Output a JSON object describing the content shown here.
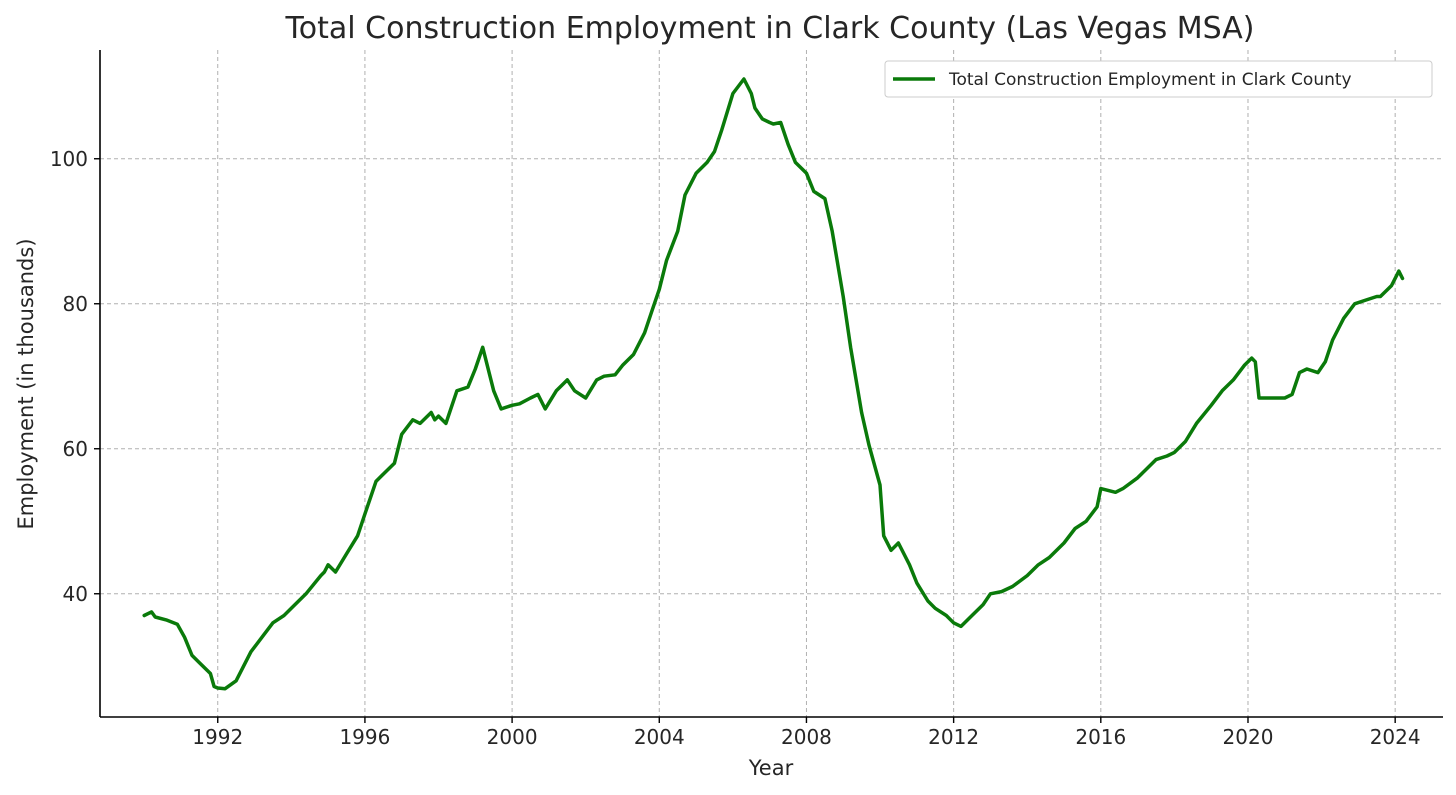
{
  "chart_data": {
    "type": "line",
    "title": "Total Construction Employment in Clark County (Las Vegas MSA)",
    "xlabel": "Year",
    "ylabel": "Employment (in thousands)",
    "xlim": [
      1988.8,
      2025.3
    ],
    "ylim": [
      23,
      115
    ],
    "xticks": [
      1992,
      1996,
      2000,
      2004,
      2008,
      2012,
      2016,
      2020,
      2024
    ],
    "yticks": [
      40,
      60,
      80,
      100
    ],
    "grid": true,
    "legend_position": "top-right",
    "series": [
      {
        "name": "Total Construction Employment in Clark County",
        "color": "#0a7a0a",
        "x": [
          1990.0,
          1990.2,
          1990.3,
          1990.6,
          1990.9,
          1991.1,
          1991.3,
          1991.5,
          1991.8,
          1991.9,
          1992.0,
          1992.2,
          1992.5,
          1992.7,
          1992.9,
          1993.2,
          1993.5,
          1993.8,
          1994.0,
          1994.4,
          1994.8,
          1994.9,
          1995.0,
          1995.2,
          1995.5,
          1995.8,
          1996.0,
          1996.3,
          1996.5,
          1996.8,
          1997.0,
          1997.3,
          1997.5,
          1997.8,
          1997.9,
          1998.0,
          1998.2,
          1998.5,
          1998.8,
          1999.0,
          1999.2,
          1999.4,
          1999.5,
          1999.7,
          2000.0,
          2000.2,
          2000.5,
          2000.7,
          2000.9,
          2001.2,
          2001.5,
          2001.7,
          2002.0,
          2002.3,
          2002.5,
          2002.8,
          2003.0,
          2003.3,
          2003.6,
          2003.8,
          2004.0,
          2004.2,
          2004.5,
          2004.7,
          2005.0,
          2005.3,
          2005.5,
          2005.7,
          2006.0,
          2006.3,
          2006.5,
          2006.6,
          2006.8,
          2007.0,
          2007.1,
          2007.3,
          2007.5,
          2007.7,
          2008.0,
          2008.2,
          2008.5,
          2008.7,
          2009.0,
          2009.2,
          2009.5,
          2009.7,
          2010.0,
          2010.1,
          2010.3,
          2010.5,
          2010.8,
          2011.0,
          2011.3,
          2011.5,
          2011.8,
          2012.0,
          2012.2,
          2012.5,
          2012.8,
          2013.0,
          2013.3,
          2013.6,
          2014.0,
          2014.3,
          2014.6,
          2015.0,
          2015.3,
          2015.6,
          2015.9,
          2016.0,
          2016.4,
          2016.6,
          2017.0,
          2017.2,
          2017.5,
          2017.8,
          2018.0,
          2018.3,
          2018.6,
          2019.0,
          2019.3,
          2019.6,
          2019.9,
          2020.1,
          2020.2,
          2020.3,
          2020.6,
          2021.0,
          2021.2,
          2021.4,
          2021.6,
          2021.9,
          2022.1,
          2022.3,
          2022.6,
          2022.9,
          2023.2,
          2023.5,
          2023.6,
          2023.9,
          2024.1,
          2024.2
        ],
        "y": [
          37.0,
          37.5,
          36.8,
          36.4,
          35.8,
          34.0,
          31.5,
          30.5,
          29.0,
          27.2,
          27.0,
          26.9,
          28.0,
          30.0,
          32.0,
          34.0,
          36.0,
          37.0,
          38.0,
          40.0,
          42.5,
          43.0,
          44.0,
          43.0,
          45.5,
          48.0,
          51.0,
          55.5,
          56.5,
          58.0,
          62.0,
          64.0,
          63.5,
          65.0,
          64.0,
          64.5,
          63.5,
          68.0,
          68.5,
          71.0,
          74.0,
          70.0,
          68.0,
          65.5,
          66.0,
          66.2,
          67.0,
          67.5,
          65.5,
          68.0,
          69.5,
          68.0,
          67.0,
          69.5,
          70.0,
          70.2,
          71.5,
          73.0,
          76.0,
          79.0,
          82.0,
          86.0,
          90.0,
          95.0,
          98.0,
          99.5,
          101.0,
          104.0,
          109.0,
          111.0,
          109.0,
          107.0,
          105.5,
          105.0,
          104.8,
          105.0,
          102.0,
          99.5,
          98.0,
          95.5,
          94.5,
          90.0,
          81.0,
          74.0,
          65.0,
          60.5,
          55.0,
          48.0,
          46.0,
          47.0,
          44.0,
          41.5,
          39.0,
          38.0,
          37.0,
          36.0,
          35.5,
          37.0,
          38.5,
          40.0,
          40.3,
          41.0,
          42.5,
          44.0,
          45.0,
          47.0,
          49.0,
          50.0,
          52.0,
          54.5,
          54.0,
          54.5,
          56.0,
          57.0,
          58.5,
          59.0,
          59.5,
          61.0,
          63.5,
          66.0,
          68.0,
          69.5,
          71.5,
          72.5,
          72.0,
          67.0,
          67.0,
          67.0,
          67.5,
          70.5,
          71.0,
          70.5,
          72.0,
          75.0,
          78.0,
          80.0,
          80.5,
          81.0,
          81.0,
          82.5,
          84.5,
          83.5
        ]
      }
    ]
  }
}
